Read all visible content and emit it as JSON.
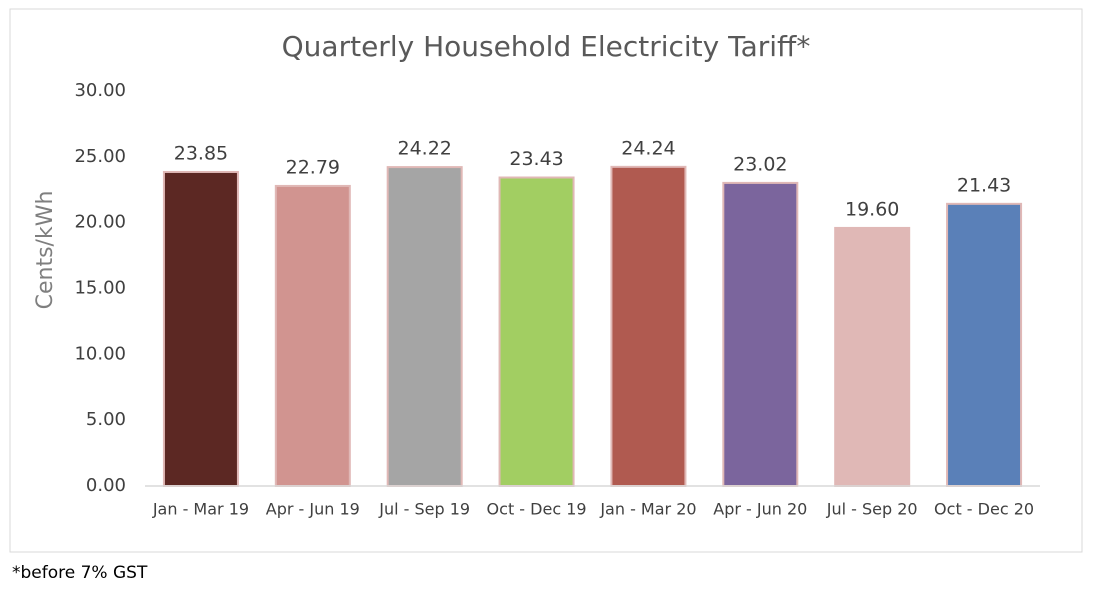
{
  "chart_data": {
    "type": "bar",
    "title": "Quarterly Household Electricity Tariff*",
    "y_label": "Cents/kWh",
    "footnote": "*before 7% GST",
    "categories": [
      "Jan - Mar 19",
      "Apr - Jun 19",
      "Jul - Sep 19",
      "Oct - Dec 19",
      "Jan - Mar 20",
      "Apr - Jun 20",
      "Jul - Sep 20",
      "Oct - Dec 20"
    ],
    "values": [
      23.85,
      22.79,
      24.22,
      23.43,
      24.24,
      23.02,
      19.6,
      21.43
    ],
    "value_labels": [
      "23.85",
      "22.79",
      "24.22",
      "23.43",
      "24.24",
      "23.02",
      "19.60",
      "21.43"
    ],
    "colors": [
      "#5c2823",
      "#d19490",
      "#a5a5a5",
      "#a2ce62",
      "#b05a50",
      "#7b659d",
      "#e0b8b6",
      "#5a80b8"
    ],
    "ylim": [
      0,
      30
    ],
    "yticks": [
      {
        "value": 0,
        "label": "0.00"
      },
      {
        "value": 5,
        "label": "5.00"
      },
      {
        "value": 10,
        "label": "10.00"
      },
      {
        "value": 15,
        "label": "15.00"
      },
      {
        "value": 20,
        "label": "20.00"
      },
      {
        "value": 25,
        "label": "25.00"
      },
      {
        "value": 30,
        "label": "30.00"
      }
    ],
    "grid": false
  }
}
